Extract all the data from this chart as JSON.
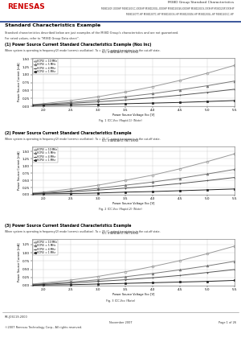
{
  "title_right": "M38D Group Standard Characteristics",
  "chip_line1": "M38D20F-XXXHP M38D20GC-XXXHP M38D20GL-XXXHP M38D20GN-XXXHP M38D20GS-XXXHP M38D20P-XXXHP",
  "chip_line2": "M38D20TT-HP M38D20TC-HP M38D20GS-HP M38D20GN-HP M38D20GL-HP M38D20GC-HP",
  "section_title": "Standard Characteristics Example",
  "section_desc1": "Standard characteristics described below are just examples of the M38D Group's characteristics and are not guaranteed.",
  "section_desc2": "For rated values, refer to \"M38D Group Data sheet\".",
  "chart1_title": "(1) Power Source Current Standard Characteristics Example (Nos Inc)",
  "chart1_condition": "When system is operating in frequency(2) mode (ceramic oscillation). Ta = 25 °C, output transistor is in the cut-off state.",
  "chart1_subtitle": "ICC STANDARD PATTERNS",
  "chart1_ylabel": "Power Source Current [mA]",
  "chart1_xlabel": "Power Source Voltage Vcc [V]",
  "chart1_fig_label": "Fig. 1 ICC-Vcc (Rapid-1) (Note)",
  "chart2_title": "(2) Power Source Current Standard Characteristics Example",
  "chart2_condition": "When system is operating in frequency(2) mode (ceramic oscillation). Ta = 25 °C, output transistor is in the cut-off state.",
  "chart2_subtitle": "ICC STANDARD PATTERNS",
  "chart2_ylabel": "Power Source Current [mA]",
  "chart2_xlabel": "Power Source Voltage Vcc [V]",
  "chart2_fig_label": "Fig. 2 ICC-Vcc (Rapid-2) (Note)",
  "chart3_title": "(3) Power Source Current Standard Characteristics Example",
  "chart3_condition": "When system is operating in frequency(2) mode (ceramic oscillation). Ta = 25 °C, output transistor is in the cut-off state.",
  "chart3_subtitle": "ICC STANDARD PATTERNS",
  "chart3_ylabel": "Power Source Current [mA]",
  "chart3_xlabel": "Power Source Voltage Vcc [V]",
  "chart3_fig_label": "Fig. 3 ICC-Vcc (Note)",
  "vcc_values": [
    1.8,
    2.0,
    2.5,
    3.0,
    3.5,
    4.0,
    4.5,
    5.0,
    5.5
  ],
  "chart1_series": [
    {
      "label": "f(CPU) = 10 MHz",
      "marker": "o",
      "color": "#999999",
      "data": [
        0.05,
        0.08,
        0.18,
        0.3,
        0.45,
        0.62,
        0.82,
        1.05,
        1.3
      ]
    },
    {
      "label": "f(CPU) = 5 MHz",
      "marker": "^",
      "color": "#777777",
      "data": [
        0.04,
        0.06,
        0.12,
        0.2,
        0.3,
        0.4,
        0.52,
        0.65,
        0.8
      ]
    },
    {
      "label": "f(CPU) = 4 MHz",
      "marker": "+",
      "color": "#555555",
      "data": [
        0.03,
        0.05,
        0.09,
        0.14,
        0.2,
        0.27,
        0.35,
        0.44,
        0.54
      ]
    },
    {
      "label": "f(CPU) = 1 MHz",
      "marker": "s",
      "color": "#222222",
      "data": [
        0.02,
        0.03,
        0.04,
        0.06,
        0.08,
        0.1,
        0.12,
        0.15,
        0.18
      ]
    }
  ],
  "chart2_series": [
    {
      "label": "f(CPU) = 10 MHz",
      "marker": "o",
      "color": "#999999",
      "data": [
        0.06,
        0.09,
        0.2,
        0.33,
        0.5,
        0.68,
        0.9,
        1.15,
        1.42
      ]
    },
    {
      "label": "f(CPU) = 5 MHz",
      "marker": "^",
      "color": "#777777",
      "data": [
        0.04,
        0.07,
        0.13,
        0.22,
        0.33,
        0.44,
        0.57,
        0.72,
        0.88
      ]
    },
    {
      "label": "f(CPU) = 4 MHz",
      "marker": "+",
      "color": "#555555",
      "data": [
        0.03,
        0.05,
        0.1,
        0.16,
        0.23,
        0.3,
        0.39,
        0.49,
        0.6
      ]
    },
    {
      "label": "f(CPU) = 1 MHz",
      "marker": "s",
      "color": "#222222",
      "data": [
        0.02,
        0.03,
        0.04,
        0.06,
        0.09,
        0.11,
        0.14,
        0.17,
        0.2
      ]
    }
  ],
  "chart3_series": [
    {
      "label": "f(CPU) = 10 MHz",
      "marker": "o",
      "color": "#999999",
      "data": [
        0.05,
        0.08,
        0.17,
        0.28,
        0.42,
        0.58,
        0.76,
        0.97,
        1.2
      ]
    },
    {
      "label": "f(CPU) = 5 MHz",
      "marker": "^",
      "color": "#777777",
      "data": [
        0.03,
        0.06,
        0.11,
        0.18,
        0.27,
        0.37,
        0.48,
        0.6,
        0.74
      ]
    },
    {
      "label": "f(CPU) = 4 MHz",
      "marker": "+",
      "color": "#555555",
      "data": [
        0.02,
        0.04,
        0.08,
        0.13,
        0.18,
        0.24,
        0.31,
        0.4,
        0.49
      ]
    },
    {
      "label": "f(CPU) = 1 MHz",
      "marker": "s",
      "color": "#222222",
      "data": [
        0.01,
        0.02,
        0.03,
        0.05,
        0.07,
        0.09,
        0.11,
        0.13,
        0.16
      ]
    }
  ],
  "footer_doc": "RE-J06119-2000",
  "footer_copy": "©2007 Renesas Technology Corp., All rights reserved.",
  "footer_date": "November 2007",
  "footer_page": "Page 1 of 26",
  "bg_color": "#ffffff",
  "header_line_color": "#1a3a8a",
  "grid_color": "#cccccc",
  "chart_border": "#aaaaaa"
}
